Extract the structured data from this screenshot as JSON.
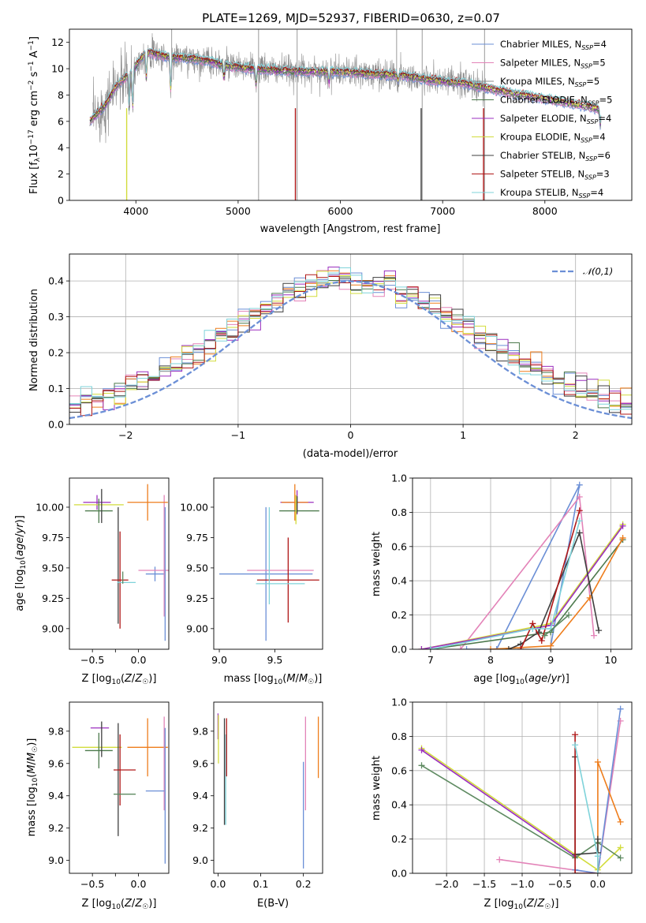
{
  "title": "PLATE=1269, MJD=52937, FIBERID=0630, z=0.07",
  "colors": {
    "chabrier_miles": "#6b8fd6",
    "salpeter_miles": "#e383b8",
    "kroupa_miles": "#8c8c8c",
    "chabrier_elodie": "#4d7a4d",
    "salpeter_elodie": "#9b2fbf",
    "kroupa_elodie": "#d2dc3c",
    "chabrier_stelib": "#3f3f3f",
    "salpeter_stelib": "#b01818",
    "kroupa_stelib": "#7fd3da",
    "orange": "#ee7d1c",
    "sage": "#5e8a61",
    "gauss": "#6b8fd6"
  },
  "legend_spectrum": [
    {
      "pre": "Chabrier MILES, N",
      "sub": "SSP",
      "post": "=4",
      "color": "#6b8fd6"
    },
    {
      "pre": "Salpeter MILES, N",
      "sub": "SSP",
      "post": "=5",
      "color": "#e383b8"
    },
    {
      "pre": "Kroupa MILES, N",
      "sub": "SSP",
      "post": "=5",
      "color": "#8c8c8c"
    },
    {
      "pre": "Chabrier ELODIE, N",
      "sub": "SSP",
      "post": "=5",
      "color": "#4d7a4d"
    },
    {
      "pre": "Salpeter ELODIE, N",
      "sub": "SSP",
      "post": "=4",
      "color": "#9b2fbf"
    },
    {
      "pre": "Kroupa ELODIE, N",
      "sub": "SSP",
      "post": "=4",
      "color": "#d2dc3c"
    },
    {
      "pre": "Chabrier STELIB, N",
      "sub": "SSP",
      "post": "=6",
      "color": "#3f3f3f"
    },
    {
      "pre": "Salpeter STELIB, N",
      "sub": "SSP",
      "post": "=3",
      "color": "#b01818"
    },
    {
      "pre": "Kroupa STELIB, N",
      "sub": "SSP",
      "post": "=4",
      "color": "#7fd3da"
    }
  ],
  "legend_hist": "𝒩(0,1)",
  "axes_text": {
    "spec_ylabel": "Flux [f_λ10^-17 erg cm^-2 s^-1 A^-1]",
    "spec_xlabel": "wavelength [Angstrom, rest frame]",
    "hist_ylabel": "Normed distribution",
    "hist_xlabel": "(data-model)/error",
    "age_ylabel": "age  [log10(age/yr)]",
    "z_xlabel": "Z [log10(Z/Z☉)]",
    "mass_xlabel": "mass [log10(M/M☉)]",
    "mw_ylabel": "mass weight",
    "age_xlabel": "age  [log10(age/yr)]",
    "mass_ylabel": "mass [log10(M/M☉)]",
    "ebv_xlabel": "E(B-V)"
  },
  "chart_data": [
    {
      "type": "line",
      "title": "PLATE=1269, MJD=52937, FIBERID=0630, z=0.07",
      "xlabel": "wavelength [Angstrom, rest frame]",
      "ylabel": "Flux [f_λ10^-17 erg cm^-2 s^-1 A^-1]",
      "xlim": [
        3350,
        8850
      ],
      "ylim": [
        0,
        13
      ],
      "xticks": [
        4000,
        5000,
        6000,
        7000,
        8000
      ],
      "yticks": [
        0,
        2,
        4,
        6,
        8,
        10,
        12
      ],
      "grid": false,
      "legend_placement": "top-right",
      "continuum": [
        [
          3550,
          6.0
        ],
        [
          3700,
          7.2
        ],
        [
          3800,
          8.6
        ],
        [
          3950,
          9.7
        ],
        [
          4100,
          11.3
        ],
        [
          4300,
          10.9
        ],
        [
          4500,
          10.8
        ],
        [
          4700,
          10.6
        ],
        [
          4900,
          10.2
        ],
        [
          5100,
          10.0
        ],
        [
          5300,
          9.9
        ],
        [
          5600,
          9.8
        ],
        [
          6000,
          9.75
        ],
        [
          6300,
          9.6
        ],
        [
          6600,
          9.5
        ],
        [
          6900,
          9.1
        ],
        [
          7200,
          8.9
        ],
        [
          7450,
          8.5
        ],
        [
          7700,
          8.1
        ],
        [
          8000,
          7.7
        ],
        [
          8300,
          7.3
        ],
        [
          8550,
          6.9
        ]
      ],
      "absorption_lines": [
        [
          3934,
          2.5
        ],
        [
          3969,
          2.8
        ],
        [
          4102,
          2.0
        ],
        [
          4340,
          2.5
        ],
        [
          4861,
          1.0
        ],
        [
          5175,
          1.2
        ],
        [
          5890,
          0.8
        ],
        [
          6563,
          0.5
        ],
        [
          8542,
          1.2
        ],
        [
          8662,
          1.0
        ]
      ],
      "sky_spikes_data": [
        [
          5200,
          0.0,
          13.0
        ],
        [
          5577,
          0.0,
          13.0
        ],
        [
          6800,
          0.0,
          13.0
        ],
        [
          7410,
          0.0,
          13.0
        ],
        [
          6550,
          9.0,
          13.0
        ],
        [
          4350,
          9.0,
          13.0
        ]
      ],
      "data_range": [
        3580,
        7420
      ],
      "model_range": [
        3550,
        8550
      ],
      "series": [
        {
          "name": "Chabrier MILES, N_SSP=4"
        },
        {
          "name": "Salpeter MILES, N_SSP=5"
        },
        {
          "name": "Kroupa MILES, N_SSP=5"
        },
        {
          "name": "Chabrier ELODIE, N_SSP=5"
        },
        {
          "name": "Salpeter ELODIE, N_SSP=4"
        },
        {
          "name": "Kroupa ELODIE, N_SSP=4"
        },
        {
          "name": "Chabrier STELIB, N_SSP=6"
        },
        {
          "name": "Salpeter STELIB, N_SSP=3"
        },
        {
          "name": "Kroupa STELIB, N_SSP=4"
        }
      ]
    },
    {
      "type": "histogram",
      "xlabel": "(data-model)/error",
      "ylabel": "Normed distribution",
      "xlim": [
        -2.5,
        2.5
      ],
      "ylim": [
        0,
        0.475
      ],
      "xticks": [
        -2,
        -1,
        0,
        1,
        2
      ],
      "yticks": [
        0.0,
        0.1,
        0.2,
        0.3,
        0.4
      ],
      "grid": true,
      "legend_placement": "top-right",
      "bin_edges_start": -2.5,
      "bin_width": 0.1,
      "reference_curve": {
        "name": "𝒩(0,1)",
        "mean": 0,
        "sigma": 1
      },
      "num_histograms": 9
    },
    {
      "type": "errorbar",
      "xlabel": "Z [log10(Z/Z☉)]",
      "ylabel": "age  [log10(age/yr)]",
      "xlim": [
        -0.75,
        0.33
      ],
      "ylim": [
        8.83,
        10.24
      ],
      "xticks": [
        -0.5,
        -0.25,
        0.0
      ],
      "xticklabels": [
        "−0.5",
        "",
        "0.0"
      ],
      "yticks": [
        9.0,
        9.25,
        9.5,
        9.75,
        10.0
      ],
      "points": [
        {
          "x": 0.18,
          "y": 9.45,
          "xerr": 0.1,
          "yerr": 0.06,
          "color": "#6b8fd6"
        },
        {
          "x": 0.26,
          "y": 9.48,
          "xerr": 0.26,
          "yerr": 0.0,
          "color": "#e383b8"
        },
        {
          "x": 0.28,
          "y": 9.6,
          "xerr": 0.0,
          "yerr": 0.5,
          "color": "#e383b8"
        },
        {
          "x": 0.29,
          "y": 9.45,
          "xerr": 0.0,
          "yerr": 0.55,
          "color": "#6b8fd6"
        },
        {
          "x": 0.1,
          "y": 10.04,
          "xerr": 0.22,
          "yerr": 0.15,
          "color": "#ee7d1c"
        },
        {
          "x": -0.45,
          "y": 10.04,
          "xerr": 0.15,
          "yerr": 0.06,
          "color": "#9b2fbf"
        },
        {
          "x": -0.43,
          "y": 10.02,
          "xerr": 0.27,
          "yerr": 0.0,
          "color": "#d2dc3c"
        },
        {
          "x": -0.43,
          "y": 9.97,
          "xerr": 0.15,
          "yerr": 0.1,
          "color": "#4d7a4d"
        },
        {
          "x": -0.4,
          "y": 10.01,
          "xerr": 0.0,
          "yerr": 0.14,
          "color": "#3f3f3f"
        },
        {
          "x": -0.22,
          "y": 9.52,
          "xerr": 0.0,
          "yerr": 0.48,
          "color": "#3f3f3f"
        },
        {
          "x": -0.2,
          "y": 9.4,
          "xerr": 0.09,
          "yerr": 0.4,
          "color": "#b01818"
        },
        {
          "x": -0.13,
          "y": 9.38,
          "xerr": 0.1,
          "yerr": 0.0,
          "color": "#7fd3da"
        },
        {
          "x": -0.17,
          "y": 9.42,
          "xerr": 0.0,
          "yerr": 0.05,
          "color": "#5e8a61"
        }
      ]
    },
    {
      "type": "errorbar",
      "xlabel": "mass [log10(M/M☉)]",
      "ylabel": "",
      "xlim": [
        8.95,
        9.93
      ],
      "ylim": [
        8.83,
        10.24
      ],
      "xticks": [
        9.0,
        9.5
      ],
      "yticks": [
        9.0,
        9.25,
        9.5,
        9.75,
        10.0
      ],
      "points": [
        {
          "x": 9.42,
          "y": 9.45,
          "xerr": 0.42,
          "yerr": 0.55,
          "color": "#6b8fd6"
        },
        {
          "x": 9.55,
          "y": 9.48,
          "xerr": 0.3,
          "yerr": 0.0,
          "color": "#e383b8"
        },
        {
          "x": 9.62,
          "y": 9.4,
          "xerr": 0.28,
          "yerr": 0.35,
          "color": "#b01818"
        },
        {
          "x": 9.55,
          "y": 9.37,
          "xerr": 0.22,
          "yerr": 0.0,
          "color": "#7fd3da"
        },
        {
          "x": 9.45,
          "y": 9.6,
          "xerr": 0.0,
          "yerr": 0.4,
          "color": "#7fd3da"
        },
        {
          "x": 9.7,
          "y": 10.04,
          "xerr": 0.15,
          "yerr": 0.1,
          "color": "#9b2fbf"
        },
        {
          "x": 9.68,
          "y": 10.04,
          "xerr": 0.12,
          "yerr": 0.15,
          "color": "#ee7d1c"
        },
        {
          "x": 9.72,
          "y": 9.97,
          "xerr": 0.18,
          "yerr": 0.0,
          "color": "#4d7a4d"
        },
        {
          "x": 9.69,
          "y": 9.98,
          "xerr": 0.0,
          "yerr": 0.12,
          "color": "#d2dc3c"
        },
        {
          "x": 9.7,
          "y": 10.02,
          "xerr": 0.0,
          "yerr": 0.07,
          "color": "#3f3f3f"
        }
      ]
    },
    {
      "type": "line",
      "xlabel": "age  [log10(age/yr)]",
      "ylabel": "mass weight",
      "xlim": [
        6.7,
        10.35
      ],
      "ylim": [
        0,
        1.0
      ],
      "xticks": [
        7,
        8,
        9,
        10
      ],
      "yticks": [
        0.0,
        0.2,
        0.4,
        0.6,
        0.8,
        1.0
      ],
      "grid": true,
      "series": [
        {
          "color": "#6b8fd6",
          "x": [
            7.6,
            8.1,
            9.48,
            9.0
          ],
          "y": [
            0.0,
            0.0,
            0.96,
            0.02
          ]
        },
        {
          "color": "#e383b8",
          "x": [
            7.5,
            9.48,
            9.72
          ],
          "y": [
            0.0,
            0.89,
            0.08
          ]
        },
        {
          "color": "#d2dc3c",
          "x": [
            6.85,
            9.0,
            10.2
          ],
          "y": [
            0.0,
            0.15,
            0.73
          ]
        },
        {
          "color": "#9b2fbf",
          "x": [
            6.85,
            9.0,
            10.2
          ],
          "y": [
            0.0,
            0.14,
            0.72
          ]
        },
        {
          "color": "#4d7a4d",
          "x": [
            7.0,
            9.0,
            10.2
          ],
          "y": [
            0.0,
            0.1,
            0.64
          ]
        },
        {
          "color": "#ee7d1c",
          "x": [
            8.0,
            9.0,
            9.65,
            10.2
          ],
          "y": [
            0.0,
            0.02,
            0.3,
            0.65
          ]
        },
        {
          "color": "#3f3f3f",
          "x": [
            8.3,
            8.5,
            8.8,
            9.48,
            9.8
          ],
          "y": [
            0.0,
            0.03,
            0.1,
            0.68,
            0.11
          ]
        },
        {
          "color": "#b01818",
          "x": [
            8.5,
            8.7,
            8.85,
            9.48
          ],
          "y": [
            0.0,
            0.15,
            0.05,
            0.81
          ]
        },
        {
          "color": "#7fd3da",
          "x": [
            7.0,
            8.7,
            9.0,
            9.48
          ],
          "y": [
            0.0,
            0.12,
            0.12,
            0.75
          ]
        },
        {
          "color": "#5e8a61",
          "x": [
            8.9,
            9.3
          ],
          "y": [
            0.08,
            0.2
          ]
        }
      ]
    },
    {
      "type": "errorbar",
      "xlabel": "Z [log10(Z/Z☉)]",
      "ylabel": "mass [log10(M/M☉)]",
      "xlim": [
        -0.75,
        0.33
      ],
      "ylim": [
        8.92,
        9.98
      ],
      "xticks": [
        -0.5,
        -0.25,
        0.0
      ],
      "xticklabels": [
        "−0.5",
        "",
        "0.0"
      ],
      "yticks": [
        9.0,
        9.2,
        9.4,
        9.6,
        9.8
      ],
      "points": [
        {
          "x": -0.42,
          "y": 9.82,
          "xerr": 0.1,
          "yerr": 0.0,
          "color": "#9b2fbf"
        },
        {
          "x": -0.45,
          "y": 9.7,
          "xerr": 0.27,
          "yerr": 0.0,
          "color": "#d2dc3c"
        },
        {
          "x": -0.43,
          "y": 9.68,
          "xerr": 0.15,
          "yerr": 0.11,
          "color": "#4d7a4d"
        },
        {
          "x": -0.4,
          "y": 9.75,
          "xerr": 0.0,
          "yerr": 0.11,
          "color": "#3f3f3f"
        },
        {
          "x": 0.1,
          "y": 9.7,
          "xerr": 0.22,
          "yerr": 0.18,
          "color": "#ee7d1c"
        },
        {
          "x": 0.28,
          "y": 9.6,
          "xerr": 0.0,
          "yerr": 0.29,
          "color": "#e383b8"
        },
        {
          "x": 0.18,
          "y": 9.43,
          "xerr": 0.1,
          "yerr": 0.0,
          "color": "#6b8fd6"
        },
        {
          "x": 0.29,
          "y": 9.4,
          "xerr": 0.0,
          "yerr": 0.42,
          "color": "#6b8fd6"
        },
        {
          "x": -0.22,
          "y": 9.5,
          "xerr": 0.0,
          "yerr": 0.35,
          "color": "#3f3f3f"
        },
        {
          "x": -0.15,
          "y": 9.56,
          "xerr": 0.12,
          "yerr": 0.0,
          "color": "#b01818"
        },
        {
          "x": -0.2,
          "y": 9.56,
          "xerr": 0.0,
          "yerr": 0.22,
          "color": "#b01818"
        },
        {
          "x": -0.15,
          "y": 9.41,
          "xerr": 0.12,
          "yerr": 0.0,
          "color": "#5e8a61"
        }
      ]
    },
    {
      "type": "errorbar",
      "xlabel": "E(B-V)",
      "ylabel": "",
      "xlim": [
        -0.01,
        0.245
      ],
      "ylim": [
        8.92,
        9.98
      ],
      "xticks": [
        0.0,
        0.1,
        0.2
      ],
      "yticks": [
        9.0,
        9.2,
        9.4,
        9.6,
        9.8
      ],
      "points": [
        {
          "x": 0.0,
          "y": 9.83,
          "xerr": 0.0,
          "yerr": 0.08,
          "color": "#9b2fbf"
        },
        {
          "x": 0.001,
          "y": 9.75,
          "xerr": 0.0,
          "yerr": 0.15,
          "color": "#d2dc3c"
        },
        {
          "x": 0.015,
          "y": 9.55,
          "xerr": 0.0,
          "yerr": 0.33,
          "color": "#3f3f3f"
        },
        {
          "x": 0.018,
          "y": 9.5,
          "xerr": 0.0,
          "yerr": 0.28,
          "color": "#7fd3da"
        },
        {
          "x": 0.02,
          "y": 9.7,
          "xerr": 0.0,
          "yerr": 0.18,
          "color": "#b01818"
        },
        {
          "x": 0.2,
          "y": 9.28,
          "xerr": 0.0,
          "yerr": 0.33,
          "color": "#6b8fd6"
        },
        {
          "x": 0.205,
          "y": 9.6,
          "xerr": 0.0,
          "yerr": 0.29,
          "color": "#e383b8"
        },
        {
          "x": 0.235,
          "y": 9.7,
          "xerr": 0.0,
          "yerr": 0.19,
          "color": "#ee7d1c"
        }
      ]
    },
    {
      "type": "line",
      "xlabel": "Z [log10(Z/Z☉)]",
      "ylabel": "mass weight",
      "xlim": [
        -2.45,
        0.45
      ],
      "ylim": [
        0,
        1.0
      ],
      "xticks": [
        -2.0,
        -1.5,
        -1.0,
        -0.5,
        0.0
      ],
      "yticks": [
        0.0,
        0.2,
        0.4,
        0.6,
        0.8,
        1.0
      ],
      "grid": true,
      "series": [
        {
          "color": "#d2dc3c",
          "x": [
            -2.33,
            -0.3,
            0.0,
            0.3
          ],
          "y": [
            0.73,
            0.11,
            0.02,
            0.15
          ]
        },
        {
          "color": "#9b2fbf",
          "x": [
            -2.33,
            -0.3
          ],
          "y": [
            0.72,
            0.1
          ]
        },
        {
          "color": "#5e8a61",
          "x": [
            -2.33,
            -0.3,
            0.0,
            0.3
          ],
          "y": [
            0.63,
            0.09,
            0.18,
            0.09
          ]
        },
        {
          "color": "#e383b8",
          "x": [
            -1.3,
            0.0,
            0.3
          ],
          "y": [
            0.08,
            0.0,
            0.89
          ]
        },
        {
          "color": "#6b8fd6",
          "x": [
            -0.3,
            0.0,
            0.3
          ],
          "y": [
            0.02,
            0.0,
            0.96
          ]
        },
        {
          "color": "#ee7d1c",
          "x": [
            0.0,
            0.0,
            0.3
          ],
          "y": [
            0.0,
            0.65,
            0.3
          ]
        },
        {
          "color": "#3f3f3f",
          "x": [
            -0.3,
            -0.3,
            0.0,
            0.0
          ],
          "y": [
            0.68,
            0.11,
            0.12,
            0.2
          ]
        },
        {
          "color": "#b01818",
          "x": [
            -0.3,
            -0.3,
            0.0
          ],
          "y": [
            0.81,
            0.0,
            0.0
          ]
        },
        {
          "color": "#7fd3da",
          "x": [
            -0.3,
            0.0,
            0.0
          ],
          "y": [
            0.75,
            0.1,
            0.0
          ]
        }
      ]
    }
  ]
}
